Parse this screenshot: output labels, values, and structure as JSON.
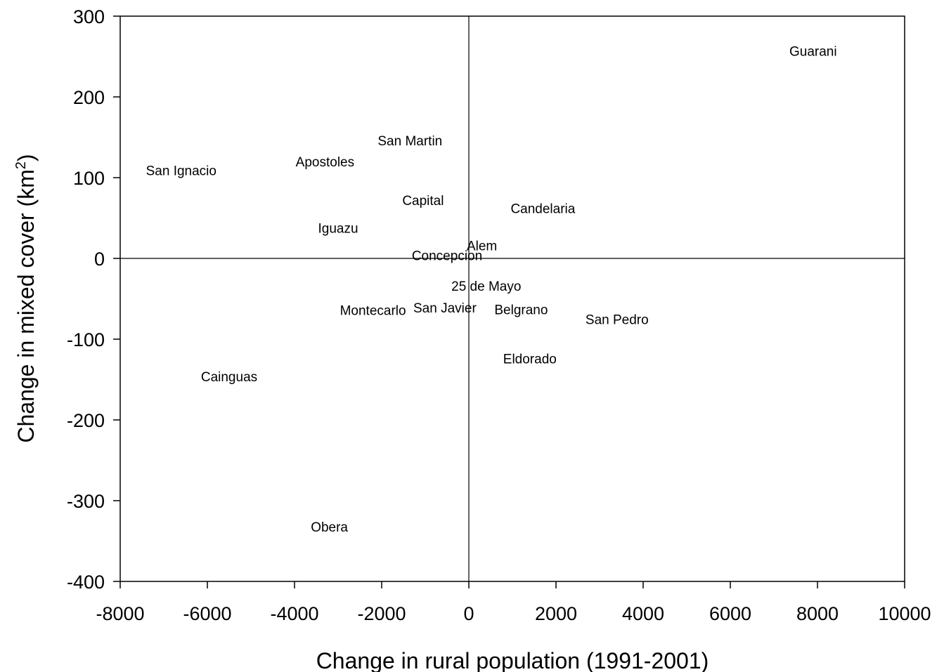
{
  "chart_data": {
    "type": "scatter",
    "title": "",
    "xlabel": "Change in rural population (1991-2001)",
    "ylabel": "Change in mixed cover (km",
    "ylabel_sup": "2",
    "ylabel_close": ")",
    "xlim": [
      -8000,
      10000
    ],
    "ylim": [
      -400,
      300
    ],
    "x_ticks": [
      -8000,
      -6000,
      -4000,
      -2000,
      0,
      2000,
      4000,
      6000,
      8000,
      10000
    ],
    "y_ticks": [
      -400,
      -300,
      -200,
      -100,
      0,
      100,
      200,
      300
    ],
    "reference_lines": {
      "x": 0,
      "y": 0
    },
    "grid": false,
    "markers": "text labels only",
    "points": [
      {
        "label": "Guarani",
        "x": 7900,
        "y": 257
      },
      {
        "label": "San Martin",
        "x": -1350,
        "y": 146
      },
      {
        "label": "Apostoles",
        "x": -3300,
        "y": 120
      },
      {
        "label": "San Ignacio",
        "x": -6600,
        "y": 109
      },
      {
        "label": "Capital",
        "x": -1050,
        "y": 72
      },
      {
        "label": "Candelaria",
        "x": 1700,
        "y": 62
      },
      {
        "label": "Iguazu",
        "x": -3000,
        "y": 38
      },
      {
        "label": "Alem",
        "x": 300,
        "y": 16
      },
      {
        "label": "Concepcion",
        "x": -500,
        "y": 4
      },
      {
        "label": "25 de Mayo",
        "x": 400,
        "y": -34
      },
      {
        "label": "Montecarlo",
        "x": -2200,
        "y": -64
      },
      {
        "label": "San Javier",
        "x": -550,
        "y": -61
      },
      {
        "label": "Belgrano",
        "x": 1200,
        "y": -63
      },
      {
        "label": "San Pedro",
        "x": 3400,
        "y": -75
      },
      {
        "label": "Eldorado",
        "x": 1400,
        "y": -124
      },
      {
        "label": "Cainguas",
        "x": -5500,
        "y": -146
      },
      {
        "label": "Obera",
        "x": -3200,
        "y": -332
      }
    ]
  }
}
